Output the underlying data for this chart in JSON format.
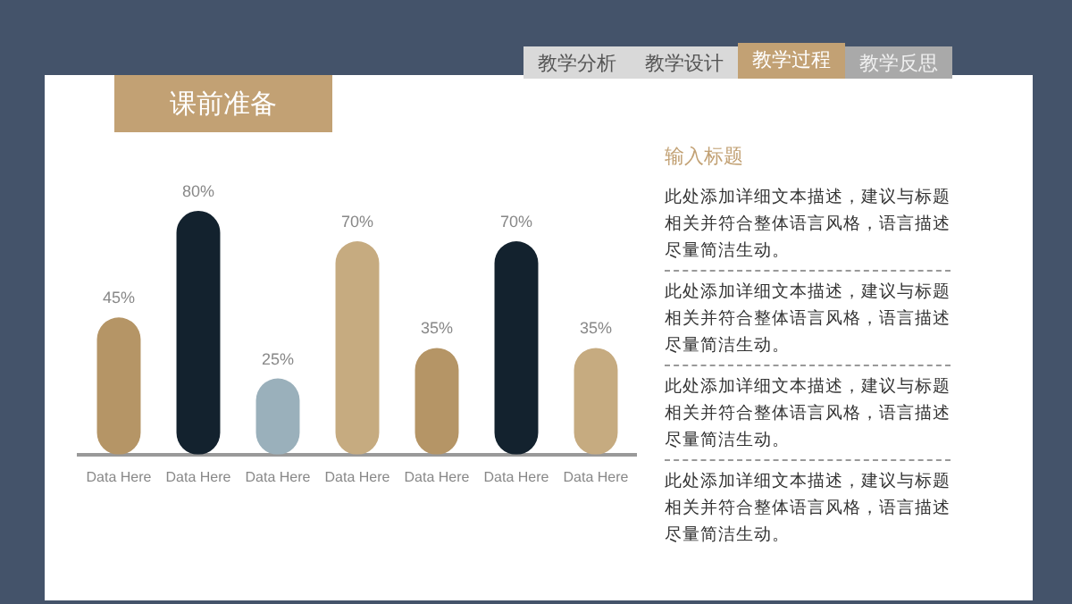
{
  "chart_data": {
    "type": "bar",
    "title": "课前准备",
    "categories": [
      "Data Here",
      "Data Here",
      "Data Here",
      "Data Here",
      "Data Here",
      "Data Here",
      "Data Here"
    ],
    "values": [
      45,
      80,
      25,
      70,
      35,
      70,
      35
    ],
    "colors": [
      "#b59566",
      "#13222e",
      "#9ab0bb",
      "#c6ab80",
      "#b59566",
      "#13222e",
      "#c6ab80"
    ],
    "value_labels": [
      "45%",
      "80%",
      "25%",
      "70%",
      "35%",
      "70%",
      "35%"
    ],
    "tick_labels": "x",
    "grid": false,
    "legend": false,
    "annotations": [
      "教学分析",
      "教学设计",
      "教学过程",
      "教学反思",
      "输入标题",
      "此处添加详细文本描述，建议与标题相关并符合整体语言风格，语言描述尽量简洁生动。",
      "此处添加详细文本描述，建议与标题相关并符合整体语言风格，语言描述尽量简洁生动。",
      "此处添加详细文本描述，建议与标题相关并符合整体语言风格，语言描述尽量简洁生动。",
      "此处添加详细文本描述，建议与标题相关并符合整体语言风格，语言描述尽量简洁生动。"
    ]
  }
}
